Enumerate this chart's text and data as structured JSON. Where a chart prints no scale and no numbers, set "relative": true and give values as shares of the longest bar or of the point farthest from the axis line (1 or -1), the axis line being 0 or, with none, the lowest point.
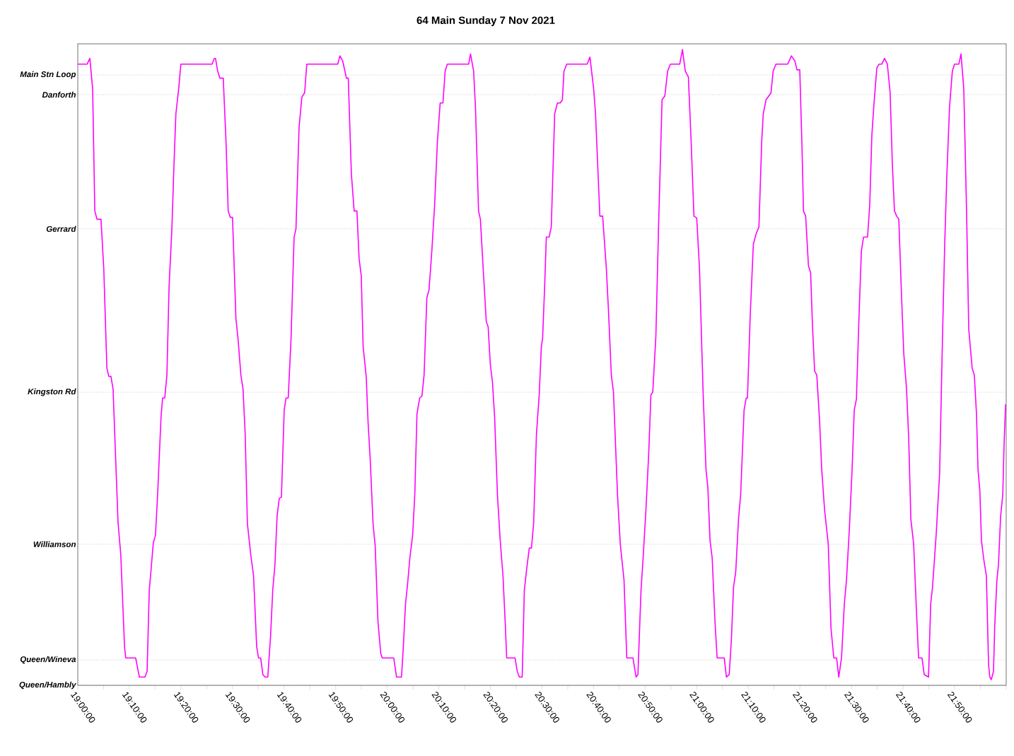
{
  "chart_data": {
    "type": "line",
    "title": "64 Main Sunday 7 Nov 2021",
    "relative": true,
    "xlim": [
      19,
      22
    ],
    "xticks": [
      {
        "value": 19,
        "label": "19:00:00"
      },
      {
        "value": 19.0833,
        "label": null
      },
      {
        "value": 19.1667,
        "label": "19:10:00"
      },
      {
        "value": 19.25,
        "label": null
      },
      {
        "value": 19.3333,
        "label": "19:20:00"
      },
      {
        "value": 19.4167,
        "label": null
      },
      {
        "value": 19.5,
        "label": "19:30:00"
      },
      {
        "value": 19.5833,
        "label": null
      },
      {
        "value": 19.6667,
        "label": "19:40:00"
      },
      {
        "value": 19.75,
        "label": null
      },
      {
        "value": 19.8333,
        "label": "19:50:00"
      },
      {
        "value": 19.9167,
        "label": null
      },
      {
        "value": 20,
        "label": "20:00:00"
      },
      {
        "value": 20.0833,
        "label": null
      },
      {
        "value": 20.1667,
        "label": "20:10:00"
      },
      {
        "value": 20.25,
        "label": null
      },
      {
        "value": 20.3333,
        "label": "20:20:00"
      },
      {
        "value": 20.4167,
        "label": null
      },
      {
        "value": 20.5,
        "label": "20:30:00"
      },
      {
        "value": 20.5833,
        "label": null
      },
      {
        "value": 20.6667,
        "label": "20:40:00"
      },
      {
        "value": 20.75,
        "label": null
      },
      {
        "value": 20.8333,
        "label": "20:50:00"
      },
      {
        "value": 20.9167,
        "label": null
      },
      {
        "value": 21,
        "label": "21:00:00"
      },
      {
        "value": 21.0833,
        "label": null
      },
      {
        "value": 21.1667,
        "label": "21:10:00"
      },
      {
        "value": 21.25,
        "label": null
      },
      {
        "value": 21.3333,
        "label": "21:20:00"
      },
      {
        "value": 21.4167,
        "label": null
      },
      {
        "value": 21.5,
        "label": "21:30:00"
      },
      {
        "value": 21.5833,
        "label": null
      },
      {
        "value": 21.6667,
        "label": "21:40:00"
      },
      {
        "value": 21.75,
        "label": null
      },
      {
        "value": 21.8333,
        "label": "21:50:00"
      },
      {
        "value": 21.9167,
        "label": null
      },
      {
        "value": 22,
        "label": null
      }
    ],
    "ref_lines": [
      {
        "axis": "y",
        "value": 0.96,
        "label": "Main Stn Loop",
        "color": "#808080",
        "line_style": "dotted"
      },
      {
        "axis": "y",
        "value": 0.929,
        "label": "Danforth",
        "color": "#808080",
        "line_style": "dotted"
      },
      {
        "axis": "y",
        "value": 0.718,
        "label": "Gerrard",
        "color": "#808080",
        "line_style": "dotted"
      },
      {
        "axis": "y",
        "value": 0.461,
        "label": "Kingston Rd",
        "color": "#808080",
        "line_style": "dotted"
      },
      {
        "axis": "y",
        "value": 0.222,
        "label": "Williamson",
        "color": "#808080",
        "line_style": "dotted"
      },
      {
        "axis": "y",
        "value": 0.04,
        "label": "Queen/Wineva",
        "color": "#808080",
        "line_style": "dotted"
      },
      {
        "axis": "y",
        "value": 0,
        "label": "Queen/Hambly",
        "color": "#808080",
        "line_style": "dotted"
      }
    ],
    "series": [
      {
        "color": "#ff00ff",
        "x": [
          19.0,
          19.03,
          19.039,
          19.048,
          19.055,
          19.062,
          19.075,
          19.084,
          19.094,
          19.1,
          19.107,
          19.114,
          19.13,
          19.139,
          19.151,
          19.155,
          19.187,
          19.199,
          19.217,
          19.224,
          19.231,
          19.237,
          19.244,
          19.251,
          19.258,
          19.269,
          19.274,
          19.281,
          19.288,
          19.295,
          19.304,
          19.311,
          19.317,
          19.326,
          19.333,
          19.434,
          19.441,
          19.445,
          19.452,
          19.459,
          19.47,
          19.479,
          19.486,
          19.493,
          19.5,
          19.511,
          19.518,
          19.527,
          19.534,
          19.541,
          19.548,
          19.559,
          19.568,
          19.578,
          19.584,
          19.591,
          19.598,
          19.605,
          19.614,
          19.623,
          19.63,
          19.637,
          19.644,
          19.651,
          19.658,
          19.667,
          19.673,
          19.68,
          19.689,
          19.699,
          19.705,
          19.715,
          19.724,
          19.733,
          19.74,
          19.84,
          19.847,
          19.856,
          19.868,
          19.874,
          19.884,
          19.893,
          19.902,
          19.909,
          19.916,
          19.922,
          19.932,
          19.938,
          19.945,
          19.954,
          19.961,
          19.97,
          19.979,
          19.984,
          20.021,
          20.03,
          20.046,
          20.052,
          20.059,
          20.066,
          20.073,
          20.082,
          20.089,
          20.096,
          20.105,
          20.112,
          20.119,
          20.128,
          20.135,
          20.144,
          20.153,
          20.162,
          20.171,
          20.18,
          20.187,
          20.194,
          20.263,
          20.269,
          20.279,
          20.285,
          20.295,
          20.301,
          20.31,
          20.32,
          20.326,
          20.333,
          20.34,
          20.347,
          20.356,
          20.365,
          20.374,
          20.381,
          20.386,
          20.413,
          20.42,
          20.427,
          20.436,
          20.443,
          20.452,
          20.459,
          20.466,
          20.473,
          20.482,
          20.491,
          20.498,
          20.502,
          20.509,
          20.514,
          20.523,
          20.53,
          20.541,
          20.55,
          20.559,
          20.566,
          20.571,
          20.58,
          20.646,
          20.655,
          20.667,
          20.673,
          20.687,
          20.696,
          20.708,
          20.715,
          20.724,
          20.731,
          20.744,
          20.753,
          20.765,
          20.774,
          20.794,
          20.804,
          20.81,
          20.82,
          20.826,
          20.836,
          20.845,
          20.852,
          20.858,
          20.868,
          20.877,
          20.888,
          20.897,
          20.906,
          20.915,
          20.945,
          20.954,
          20.963,
          20.973,
          20.982,
          20.991,
          21.0,
          21.009,
          21.021,
          21.03,
          21.036,
          21.043,
          21.05,
          21.059,
          21.066,
          21.089,
          21.096,
          21.105,
          21.112,
          21.119,
          21.126,
          21.135,
          21.142,
          21.153,
          21.16,
          21.164,
          21.173,
          21.183,
          21.192,
          21.201,
          21.21,
          21.215,
          21.224,
          21.233,
          21.24,
          21.247,
          21.256,
          21.294,
          21.306,
          21.317,
          21.324,
          21.333,
          21.34,
          21.345,
          21.352,
          21.361,
          21.368,
          21.374,
          21.381,
          21.388,
          21.397,
          21.404,
          21.413,
          21.425,
          21.434,
          21.443,
          21.452,
          21.459,
          21.468,
          21.477,
          21.484,
          21.493,
          21.502,
          21.509,
          21.516,
          21.525,
          21.532,
          21.539,
          21.552,
          21.559,
          21.566,
          21.573,
          21.582,
          21.589,
          21.598,
          21.607,
          21.616,
          21.625,
          21.632,
          21.639,
          21.646,
          21.653,
          21.662,
          21.669,
          21.678,
          21.685,
          21.692,
          21.701,
          21.71,
          21.717,
          21.728,
          21.735,
          21.749,
          21.756,
          21.762,
          21.774,
          21.781,
          21.785,
          21.794,
          21.801,
          21.808,
          21.817,
          21.826,
          21.833,
          21.847,
          21.854,
          21.863,
          21.872,
          21.879,
          21.89,
          21.897,
          21.904,
          21.909,
          21.915,
          21.92,
          21.927,
          21.936,
          21.943,
          21.947,
          21.952,
          21.959,
          21.963,
          21.97,
          21.975,
          21.982,
          21.989,
          21.993,
          21.998
        ],
        "values": [
          0.977,
          0.977,
          0.986,
          0.938,
          0.746,
          0.733,
          0.733,
          0.655,
          0.499,
          0.486,
          0.486,
          0.466,
          0.257,
          0.205,
          0.061,
          0.043,
          0.043,
          0.013,
          0.013,
          0.022,
          0.15,
          0.183,
          0.224,
          0.236,
          0.3,
          0.422,
          0.452,
          0.452,
          0.488,
          0.627,
          0.718,
          0.821,
          0.899,
          0.938,
          0.977,
          0.977,
          0.986,
          0.986,
          0.966,
          0.955,
          0.955,
          0.855,
          0.746,
          0.736,
          0.736,
          0.577,
          0.544,
          0.488,
          0.466,
          0.394,
          0.255,
          0.205,
          0.172,
          0.061,
          0.043,
          0.043,
          0.017,
          0.013,
          0.013,
          0.078,
          0.15,
          0.189,
          0.266,
          0.294,
          0.296,
          0.433,
          0.452,
          0.452,
          0.544,
          0.705,
          0.718,
          0.877,
          0.925,
          0.932,
          0.977,
          0.977,
          0.99,
          0.982,
          0.955,
          0.955,
          0.805,
          0.746,
          0.746,
          0.671,
          0.644,
          0.533,
          0.486,
          0.414,
          0.355,
          0.255,
          0.219,
          0.1,
          0.05,
          0.043,
          0.043,
          0.013,
          0.013,
          0.061,
          0.128,
          0.161,
          0.2,
          0.236,
          0.3,
          0.427,
          0.452,
          0.455,
          0.488,
          0.61,
          0.622,
          0.683,
          0.755,
          0.855,
          0.916,
          0.916,
          0.966,
          0.977,
          0.977,
          0.993,
          0.966,
          0.91,
          0.746,
          0.733,
          0.655,
          0.572,
          0.564,
          0.505,
          0.477,
          0.422,
          0.3,
          0.228,
          0.172,
          0.1,
          0.043,
          0.043,
          0.022,
          0.013,
          0.013,
          0.15,
          0.189,
          0.216,
          0.216,
          0.255,
          0.394,
          0.457,
          0.533,
          0.546,
          0.633,
          0.705,
          0.705,
          0.721,
          0.899,
          0.916,
          0.916,
          0.921,
          0.966,
          0.977,
          0.977,
          0.988,
          0.938,
          0.899,
          0.738,
          0.738,
          0.655,
          0.588,
          0.488,
          0.461,
          0.3,
          0.222,
          0.166,
          0.043,
          0.043,
          0.013,
          0.017,
          0.15,
          0.194,
          0.277,
          0.366,
          0.457,
          0.461,
          0.549,
          0.727,
          0.921,
          0.927,
          0.966,
          0.977,
          0.977,
          1,
          0.966,
          0.957,
          0.855,
          0.738,
          0.735,
          0.655,
          0.455,
          0.339,
          0.311,
          0.228,
          0.2,
          0.1,
          0.043,
          0.043,
          0.013,
          0.017,
          0.072,
          0.155,
          0.178,
          0.261,
          0.3,
          0.433,
          0.452,
          0.452,
          0.583,
          0.694,
          0.71,
          0.721,
          0.855,
          0.899,
          0.921,
          0.927,
          0.932,
          0.966,
          0.977,
          0.977,
          0.99,
          0.982,
          0.968,
          0.968,
          0.849,
          0.746,
          0.738,
          0.66,
          0.649,
          0.566,
          0.494,
          0.488,
          0.416,
          0.339,
          0.277,
          0.222,
          0.089,
          0.043,
          0.043,
          0.013,
          0.044,
          0.128,
          0.166,
          0.244,
          0.339,
          0.433,
          0.45,
          0.588,
          0.683,
          0.705,
          0.705,
          0.755,
          0.866,
          0.916,
          0.971,
          0.977,
          0.977,
          0.986,
          0.977,
          0.932,
          0.821,
          0.746,
          0.738,
          0.733,
          0.61,
          0.522,
          0.466,
          0.388,
          0.261,
          0.222,
          0.117,
          0.043,
          0.043,
          0.017,
          0.013,
          0.128,
          0.155,
          0.239,
          0.3,
          0.335,
          0.544,
          0.688,
          0.799,
          0.91,
          0.966,
          0.977,
          0.977,
          0.993,
          0.938,
          0.744,
          0.56,
          0.499,
          0.488,
          0.427,
          0.339,
          0.305,
          0.228,
          0.2,
          0.172,
          0.033,
          0.013,
          0.009,
          0.022,
          0.094,
          0.166,
          0.189,
          0.266,
          0.3,
          0.377,
          0.442
        ]
      }
    ]
  }
}
